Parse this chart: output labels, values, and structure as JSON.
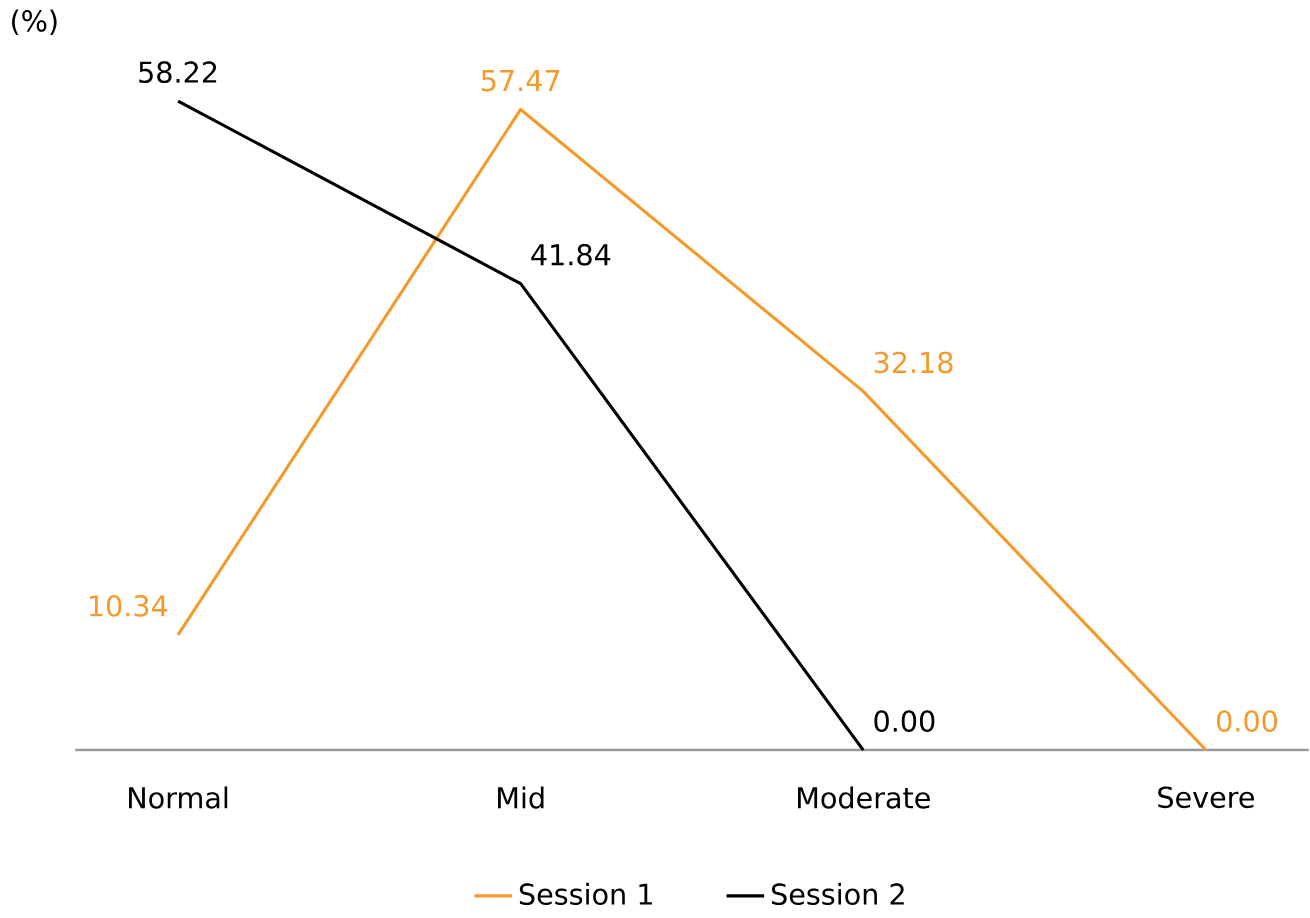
{
  "chart_data": {
    "type": "line",
    "ylabel": "(%)",
    "categories": [
      "Normal",
      "Mid",
      "Moderate",
      "Severe"
    ],
    "series": [
      {
        "name": "Session 1",
        "color": "#f39a2b",
        "values": [
          10.34,
          57.47,
          32.18,
          0.0
        ],
        "value_labels": [
          "10.34",
          "57.47",
          "32.18",
          "0.00"
        ]
      },
      {
        "name": "Session 2",
        "color": "#000000",
        "values": [
          58.22,
          41.84,
          0.0,
          null
        ],
        "value_labels": [
          "58.22",
          "41.84",
          "0.00",
          null
        ]
      }
    ],
    "legend": "bottom",
    "grid": false,
    "marker": "none",
    "line_style": "solid"
  }
}
